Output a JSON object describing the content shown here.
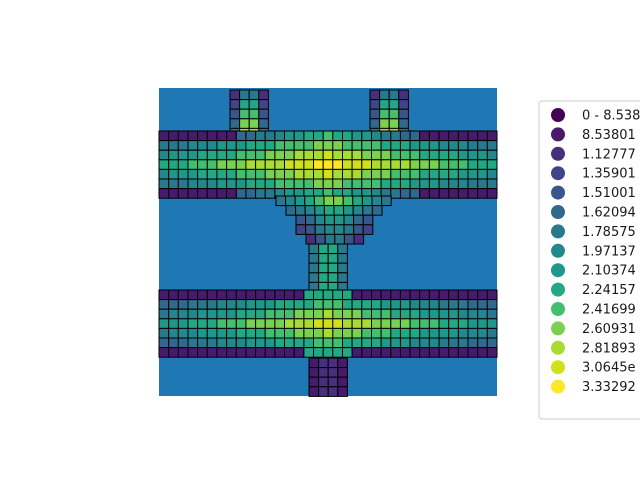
{
  "chart_data": {
    "type": "heatmap",
    "title": "",
    "xlabel": "",
    "ylabel": "",
    "grid": false,
    "colormap": "viridis",
    "background_color": "#1f77b4",
    "cell_edge_color": "#000000",
    "legend_placement": "right",
    "legend": [
      {
        "label": "0 - 8.538",
        "color": "#440154"
      },
      {
        "label": "8.53801",
        "color": "#481a6c"
      },
      {
        "label": "1.12777",
        "color": "#472f7d"
      },
      {
        "label": "1.35901",
        "color": "#414487"
      },
      {
        "label": "1.51001",
        "color": "#39568c"
      },
      {
        "label": "1.62094",
        "color": "#31688e"
      },
      {
        "label": "1.78575",
        "color": "#2a788e"
      },
      {
        "label": "1.97137",
        "color": "#23888e"
      },
      {
        "label": "2.10374",
        "color": "#1f988b"
      },
      {
        "label": "2.24157",
        "color": "#22a884"
      },
      {
        "label": "2.41699",
        "color": "#44bf70"
      },
      {
        "label": "2.60931",
        "color": "#7ad151"
      },
      {
        "label": "2.81893",
        "color": "#a8db34"
      },
      {
        "label": "3.0645e",
        "color": "#d0e11c"
      },
      {
        "label": "3.33292",
        "color": "#fde725"
      }
    ],
    "grid_map": [
      "........0000...................0000.......",
      "........0#00...................0000.......",
      "........2==2...................2==2.......",
      "........2==2...................2==2.......",
      "........2==2...................2==2.......",
      "0000000033==2444444444....444442==33000000",
      "88888888899==9999999999999999999==99888888",
      "88888888899==9999999999999999999==99888888",
      "88888888899==9999999999999999999==99888888",
      "88888888899==9999999999999999999==99888888",
      "0000000033==2444444444....444442==33000000",
      "..............0000.....0000...............",
      "...............0000...0000................",
      "................00000000..................",
      "................00000000..................",
      "..................0000....................",
      "..................0000....................",
      "..................0000....................",
      "..................0000....................",
      "..................0000....................",
      "..................0000....................",
      "..................0000....................",
      "..................0000....................",
      "0000000000000000000000000000000000000000000",
      "8888888888888888888888888888888888888888888",
      "8888888888888888888888888888888888888888888",
      "8888888888888888888888888888888888888888888",
      "8888888888888888888888888888888888888888888",
      "0000000000000000000000000000000000000000000",
      "..................0000....................",
      "..................0000....................",
      "..................0000...................."
    ]
  }
}
